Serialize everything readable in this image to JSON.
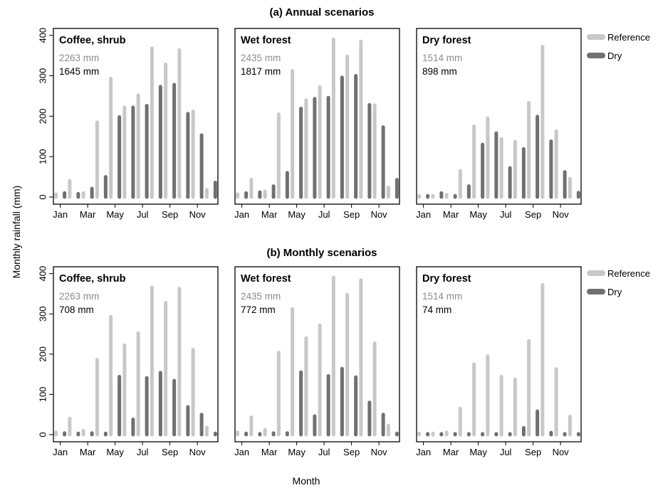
{
  "figure": {
    "ylabel": "Monthly rainfall (mm)",
    "xlabel": "Month"
  },
  "legend": {
    "entries": [
      {
        "label": "Reference",
        "color": "#c8c8c8"
      },
      {
        "label": "Dry",
        "color": "#707070"
      }
    ]
  },
  "colors": {
    "reference": "#c8c8c8",
    "dry": "#707070",
    "reference_text": "#8c8c8c",
    "frame": "#000000"
  },
  "axes": {
    "y_ticks": [
      "0",
      "100",
      "200",
      "300",
      "400"
    ],
    "x_tick_labels": [
      "Jan",
      "Mar",
      "May",
      "Jul",
      "Sep",
      "Nov"
    ]
  },
  "chart_data": [
    {
      "type": "bar",
      "section": "(a) Annual scenarios",
      "panels": [
        {
          "title": "Coffee, shrub",
          "reference_total": "2263 mm",
          "dry_total": "1645 mm",
          "categories": [
            "Jan",
            "Feb",
            "Mar",
            "Apr",
            "May",
            "Jun",
            "Jul",
            "Aug",
            "Sep",
            "Oct",
            "Nov",
            "Dec"
          ],
          "series": [
            {
              "name": "Reference",
              "values": [
                7,
                40,
                10,
                185,
                293,
                222,
                252,
                368,
                328,
                364,
                212,
                18
              ]
            },
            {
              "name": "Dry",
              "values": [
                10,
                8,
                21,
                50,
                198,
                222,
                226,
                273,
                278,
                206,
                153,
                36
              ]
            }
          ],
          "ylim": [
            0,
            410
          ]
        },
        {
          "title": "Wet forest",
          "reference_total": "2435 mm",
          "dry_total": "1817 mm",
          "categories": [
            "Jan",
            "Feb",
            "Mar",
            "Apr",
            "May",
            "Jun",
            "Jul",
            "Aug",
            "Sep",
            "Oct",
            "Nov",
            "Dec"
          ],
          "series": [
            {
              "name": "Reference",
              "values": [
                7,
                43,
                14,
                205,
                312,
                240,
                272,
                390,
                348,
                385,
                227,
                24
              ]
            },
            {
              "name": "Dry",
              "values": [
                10,
                12,
                27,
                60,
                219,
                243,
                246,
                296,
                300,
                228,
                173,
                43
              ]
            }
          ],
          "ylim": [
            0,
            410
          ]
        },
        {
          "title": "Dry forest",
          "reference_total": "1514 mm",
          "dry_total": "898 mm",
          "categories": [
            "Jan",
            "Feb",
            "Mar",
            "Apr",
            "May",
            "Jun",
            "Jul",
            "Aug",
            "Sep",
            "Oct",
            "Nov",
            "Dec"
          ],
          "series": [
            {
              "name": "Reference",
              "values": [
                3,
                3,
                6,
                65,
                175,
                195,
                144,
                137,
                233,
                372,
                163,
                45
              ]
            },
            {
              "name": "Dry",
              "values": [
                3,
                10,
                3,
                27,
                130,
                158,
                72,
                119,
                199,
                138,
                62,
                11
              ]
            }
          ],
          "ylim": [
            0,
            410
          ]
        }
      ]
    },
    {
      "type": "bar",
      "section": "(b) Monthly scenarios",
      "panels": [
        {
          "title": "Coffee, shrub",
          "reference_total": "2263 mm",
          "dry_total": "708 mm",
          "categories": [
            "Jan",
            "Feb",
            "Mar",
            "Apr",
            "May",
            "Jun",
            "Jul",
            "Aug",
            "Sep",
            "Oct",
            "Nov",
            "Dec"
          ],
          "series": [
            {
              "name": "Reference",
              "values": [
                6,
                40,
                10,
                186,
                293,
                222,
                252,
                366,
                328,
                363,
                211,
                18
              ]
            },
            {
              "name": "Dry",
              "values": [
                4,
                3,
                4,
                3,
                144,
                38,
                141,
                154,
                134,
                69,
                50,
                3
              ]
            }
          ],
          "ylim": [
            0,
            410
          ]
        },
        {
          "title": "Wet forest",
          "reference_total": "2435 mm",
          "dry_total": "772 mm",
          "categories": [
            "Jan",
            "Feb",
            "Mar",
            "Apr",
            "May",
            "Jun",
            "Jul",
            "Aug",
            "Sep",
            "Oct",
            "Nov",
            "Dec"
          ],
          "series": [
            {
              "name": "Reference",
              "values": [
                6,
                43,
                12,
                204,
                312,
                240,
                272,
                390,
                348,
                384,
                227,
                23
              ]
            },
            {
              "name": "Dry",
              "values": [
                3,
                2,
                4,
                4,
                155,
                46,
                146,
                164,
                143,
                80,
                50,
                3
              ]
            }
          ],
          "ylim": [
            0,
            410
          ]
        },
        {
          "title": "Dry forest",
          "reference_total": "1514 mm",
          "dry_total": "74 mm",
          "categories": [
            "Jan",
            "Feb",
            "Mar",
            "Apr",
            "May",
            "Jun",
            "Jul",
            "Aug",
            "Sep",
            "Oct",
            "Nov",
            "Dec"
          ],
          "series": [
            {
              "name": "Reference",
              "values": [
                3,
                3,
                6,
                65,
                175,
                195,
                144,
                137,
                233,
                372,
                163,
                45
              ]
            },
            {
              "name": "Dry",
              "values": [
                2,
                2,
                2,
                2,
                2,
                2,
                2,
                17,
                58,
                5,
                2,
                2
              ]
            }
          ],
          "ylim": [
            0,
            410
          ]
        }
      ]
    }
  ]
}
